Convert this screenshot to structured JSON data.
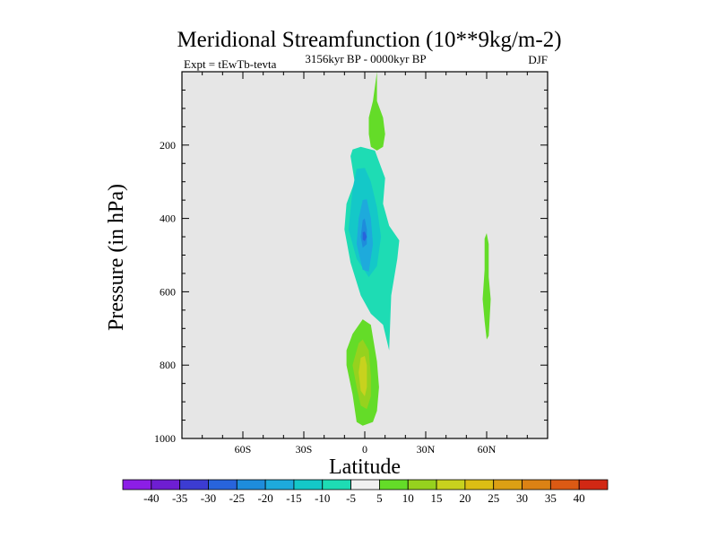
{
  "chart_data": {
    "type": "heatmap",
    "title": "Meridional Streamfunction (10**9kg/m-2)",
    "subtitle_left": "Expt = tEwTb-tevta",
    "subtitle_center": "3156kyr BP - 0000kyr BP",
    "subtitle_right": "DJF",
    "xlabel": "Latitude",
    "ylabel": "Pressure (in hPa)",
    "xlim": [
      -90,
      90
    ],
    "ylim": [
      1000,
      0
    ],
    "x_ticks": [
      {
        "value": -60,
        "label": "60S"
      },
      {
        "value": -30,
        "label": "30S"
      },
      {
        "value": 0,
        "label": "0"
      },
      {
        "value": 30,
        "label": "30N"
      },
      {
        "value": 60,
        "label": "60N"
      }
    ],
    "y_ticks": [
      {
        "value": 200,
        "label": "200"
      },
      {
        "value": 400,
        "label": "400"
      },
      {
        "value": 600,
        "label": "600"
      },
      {
        "value": 800,
        "label": "800"
      },
      {
        "value": 1000,
        "label": "1000"
      }
    ],
    "background_color": "#e6e6e6",
    "colorbar": {
      "labels": [
        "-40",
        "-35",
        "-30",
        "-25",
        "-20",
        "-15",
        "-10",
        "-5",
        "5",
        "10",
        "15",
        "20",
        "25",
        "30",
        "35",
        "40"
      ],
      "colors": [
        "#8c1ee6",
        "#6e1ed2",
        "#3c3cd2",
        "#2864dc",
        "#1e8cdc",
        "#1eaadc",
        "#14c8c8",
        "#1edcb4",
        "#f0f0f0",
        "#64dc28",
        "#96d21e",
        "#c8d21e",
        "#dcbe14",
        "#dca014",
        "#dc8214",
        "#dc5a14",
        "#d22814"
      ]
    },
    "features": [
      {
        "name": "upper-tropo-positive",
        "level": 5,
        "color": "#64dc28",
        "outline": [
          [
            6,
            0
          ],
          [
            4,
            80
          ],
          [
            2,
            125
          ],
          [
            2,
            170
          ],
          [
            3,
            205
          ],
          [
            6,
            215
          ],
          [
            9,
            205
          ],
          [
            10,
            170
          ],
          [
            9,
            125
          ],
          [
            6,
            80
          ]
        ]
      },
      {
        "name": "tropical-negative-outer",
        "level": -5,
        "color": "#1edcb4",
        "outline": [
          [
            -6,
            212
          ],
          [
            -2,
            205
          ],
          [
            5,
            215
          ],
          [
            10,
            290
          ],
          [
            9,
            360
          ],
          [
            12,
            420
          ],
          [
            17,
            460
          ],
          [
            16,
            510
          ],
          [
            13,
            610
          ],
          [
            12,
            760
          ],
          [
            9,
            690
          ],
          [
            3,
            660
          ],
          [
            -2,
            610
          ],
          [
            -7,
            520
          ],
          [
            -10,
            430
          ],
          [
            -9,
            360
          ],
          [
            -5,
            300
          ],
          [
            -7,
            230
          ]
        ]
      },
      {
        "name": "tropical-negative-10",
        "level": -10,
        "color": "#14c8c8",
        "outline": [
          [
            -4,
            265
          ],
          [
            0,
            262
          ],
          [
            3,
            300
          ],
          [
            6,
            370
          ],
          [
            8,
            450
          ],
          [
            6,
            530
          ],
          [
            2,
            560
          ],
          [
            -4,
            510
          ],
          [
            -8,
            430
          ],
          [
            -6,
            320
          ]
        ]
      },
      {
        "name": "tropical-negative-15",
        "level": -15,
        "color": "#1eaadc",
        "outline": [
          [
            -1,
            350
          ],
          [
            1,
            348
          ],
          [
            3,
            400
          ],
          [
            4,
            470
          ],
          [
            2,
            545
          ],
          [
            -1,
            540
          ],
          [
            -4,
            470
          ],
          [
            -3,
            400
          ]
        ]
      },
      {
        "name": "tropical-negative-20",
        "level": -20,
        "color": "#1e8cdc",
        "outline": [
          [
            -1,
            405
          ],
          [
            0,
            400
          ],
          [
            1,
            430
          ],
          [
            1,
            470
          ],
          [
            -1,
            480
          ],
          [
            -2,
            450
          ]
        ]
      },
      {
        "name": "tropical-negative-25",
        "level": -25,
        "color": "#2864dc",
        "outline": [
          [
            -1,
            438
          ],
          [
            0,
            436
          ],
          [
            1,
            450
          ],
          [
            0,
            462
          ],
          [
            -1,
            458
          ]
        ]
      },
      {
        "name": "lower-tropo-positive-5",
        "level": 5,
        "color": "#64dc28",
        "outline": [
          [
            -6,
            715
          ],
          [
            -1,
            675
          ],
          [
            3,
            690
          ],
          [
            6,
            790
          ],
          [
            7,
            860
          ],
          [
            6,
            925
          ],
          [
            4,
            955
          ],
          [
            -1,
            965
          ],
          [
            -4,
            955
          ],
          [
            -6,
            880
          ],
          [
            -9,
            800
          ],
          [
            -9,
            760
          ]
        ]
      },
      {
        "name": "lower-tropo-positive-10",
        "level": 10,
        "color": "#96d21e",
        "outline": [
          [
            -3,
            740
          ],
          [
            -1,
            730
          ],
          [
            2,
            760
          ],
          [
            3,
            830
          ],
          [
            3,
            885
          ],
          [
            1,
            920
          ],
          [
            -2,
            910
          ],
          [
            -4,
            860
          ],
          [
            -6,
            800
          ]
        ]
      },
      {
        "name": "lower-tropo-positive-15",
        "level": 15,
        "color": "#c8d21e",
        "outline": [
          [
            -2,
            780
          ],
          [
            0,
            775
          ],
          [
            1,
            800
          ],
          [
            1,
            860
          ],
          [
            0,
            885
          ],
          [
            -2,
            870
          ],
          [
            -3,
            820
          ]
        ]
      },
      {
        "name": "nh-subtropics-positive",
        "level": 5,
        "color": "#64dc28",
        "outline": [
          [
            59,
            455
          ],
          [
            60,
            440
          ],
          [
            61,
            470
          ],
          [
            61,
            560
          ],
          [
            62,
            620
          ],
          [
            61,
            720
          ],
          [
            60,
            730
          ],
          [
            59,
            680
          ],
          [
            58,
            620
          ],
          [
            59,
            540
          ]
        ]
      }
    ]
  }
}
